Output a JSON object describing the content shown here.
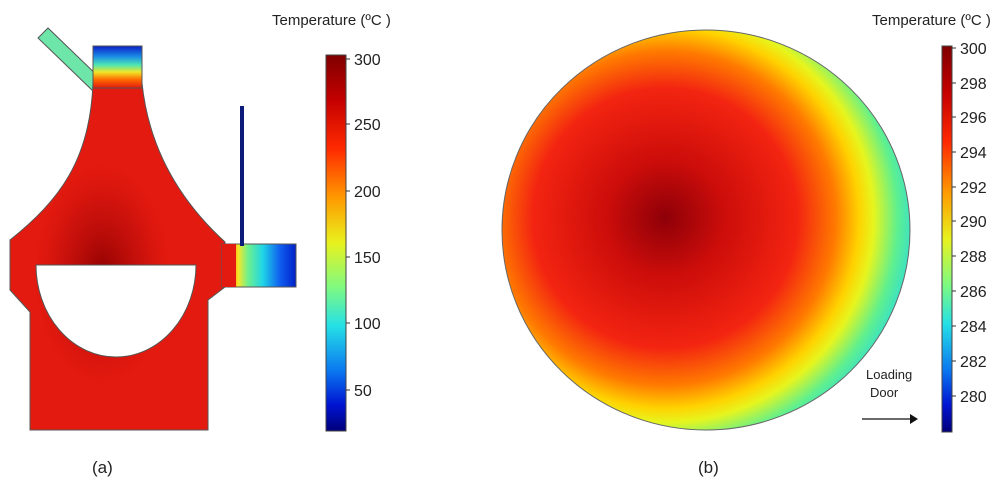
{
  "panel_a": {
    "colorbar_title": "Temperature (ºC )",
    "ticks": [
      "300",
      "250",
      "200",
      "150",
      "100",
      "50"
    ],
    "caption": "(a)"
  },
  "panel_b": {
    "colorbar_title": "Temperature (ºC )",
    "ticks": [
      "300",
      "298",
      "296",
      "294",
      "292",
      "290",
      "288",
      "286",
      "284",
      "282",
      "280"
    ],
    "annotation_line1": "Loading",
    "annotation_line2": "Door",
    "caption": "(b)"
  },
  "colors": {
    "jet_dark_red": "#7f0000",
    "jet_red": "#e31a0f",
    "jet_yellow": "#f5f01e",
    "jet_cyan": "#3ce6d2",
    "jet_blue": "#0a28d2",
    "jet_dark_blue": "#00008c"
  }
}
